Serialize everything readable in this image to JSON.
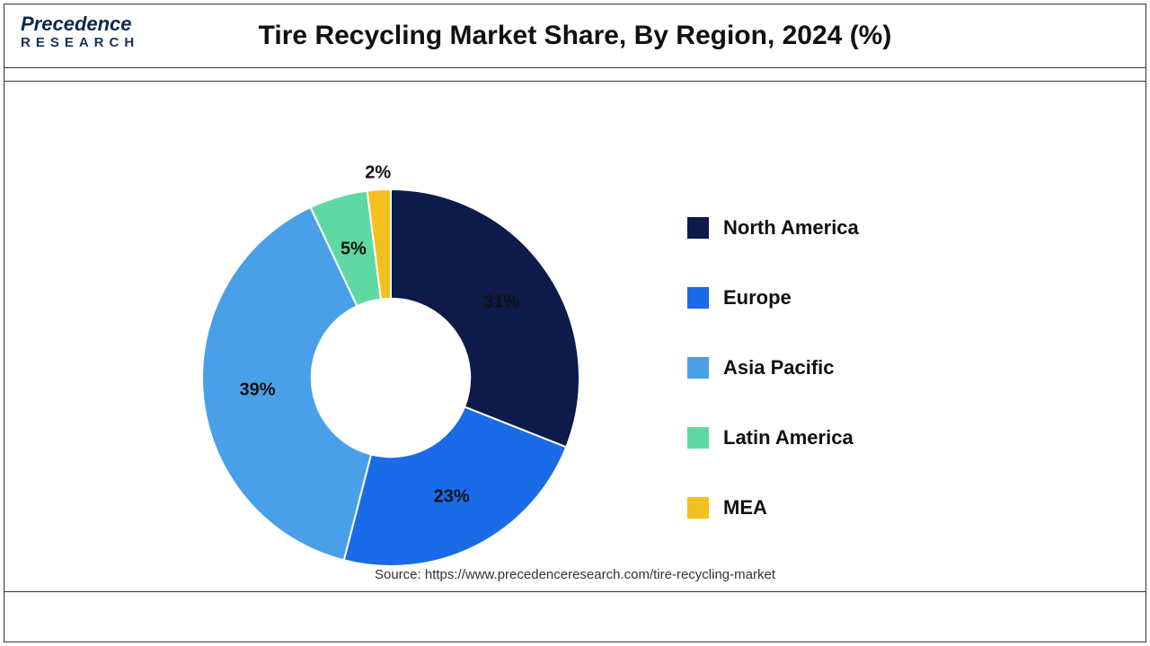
{
  "header": {
    "logo_line1": "Precedence",
    "logo_line2": "RESEARCH",
    "title": "Tire Recycling Market Share, By Region, 2024 (%)"
  },
  "chart": {
    "type": "donut",
    "background_color": "#ffffff",
    "inner_radius_ratio": 0.42,
    "outer_radius": 210,
    "start_angle_deg": 0,
    "label_fontsize": 20,
    "label_fontweight": 700,
    "label_color": "#111111",
    "slices": [
      {
        "name": "North America",
        "value": 31,
        "color": "#0e1a4a",
        "label": "31%"
      },
      {
        "name": "Europe",
        "value": 23,
        "color": "#1a6be8",
        "label": "23%"
      },
      {
        "name": "Asia Pacific",
        "value": 39,
        "color": "#4aa0e8",
        "label": "39%"
      },
      {
        "name": "Latin America",
        "value": 5,
        "color": "#5fd9a4",
        "label": "5%"
      },
      {
        "name": "MEA",
        "value": 2,
        "color": "#f4c01e",
        "label": "2%"
      }
    ],
    "stroke_color": "#ffffff",
    "stroke_width": 2
  },
  "legend": {
    "fontsize": 22,
    "fontweight": 700,
    "swatch_size": 24,
    "items": [
      {
        "label": "North America",
        "color": "#0e1a4a"
      },
      {
        "label": "Europe",
        "color": "#1a6be8"
      },
      {
        "label": "Asia Pacific",
        "color": "#4aa0e8"
      },
      {
        "label": "Latin America",
        "color": "#5fd9a4"
      },
      {
        "label": "MEA",
        "color": "#f4c01e"
      }
    ]
  },
  "source": {
    "text": "Source: https://www.precedenceresearch.com/tire-recycling-market",
    "fontsize": 15,
    "color": "#333333"
  }
}
